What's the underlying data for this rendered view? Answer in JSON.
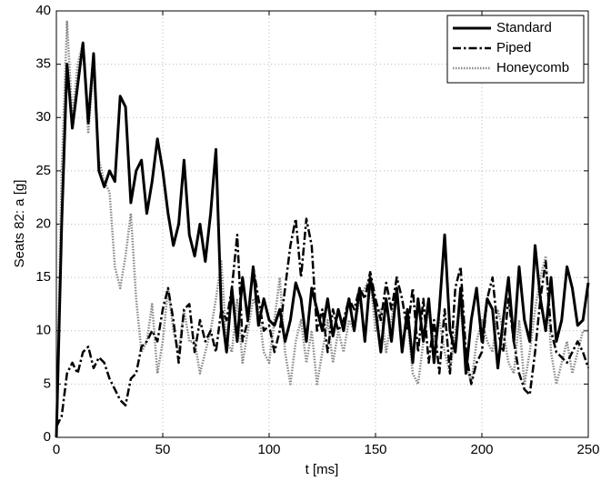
{
  "chart_data": {
    "type": "line",
    "xlabel": "t [ms]",
    "ylabel": "Seats 82: a [g]",
    "x": [
      0,
      2.5,
      5,
      7.5,
      10,
      12.5,
      15,
      17.5,
      20,
      22.5,
      25,
      27.5,
      30,
      32.5,
      35,
      37.5,
      40,
      42.5,
      45,
      47.5,
      50,
      52.5,
      55,
      57.5,
      60,
      62.5,
      65,
      67.5,
      70,
      72.5,
      75,
      77.5,
      80,
      82.5,
      85,
      87.5,
      90,
      92.5,
      95,
      97.5,
      100,
      102.5,
      105,
      107.5,
      110,
      112.5,
      115,
      117.5,
      120,
      122.5,
      125,
      127.5,
      130,
      132.5,
      135,
      137.5,
      140,
      142.5,
      145,
      147.5,
      150,
      152.5,
      155,
      157.5,
      160,
      162.5,
      165,
      167.5,
      170,
      172.5,
      175,
      177.5,
      180,
      182.5,
      185,
      187.5,
      190,
      192.5,
      195,
      197.5,
      200,
      202.5,
      205,
      207.5,
      210,
      212.5,
      215,
      217.5,
      220,
      222.5,
      225,
      227.5,
      230,
      232.5,
      235,
      237.5,
      240,
      242.5,
      245,
      247.5,
      250
    ],
    "series": [
      {
        "name": "Standard",
        "color": "#000000",
        "style": "solid",
        "values": [
          0,
          20,
          35,
          29,
          33,
          37,
          29.5,
          36,
          25,
          23.5,
          25,
          24,
          32,
          31,
          22,
          25,
          26,
          21,
          24,
          28,
          25,
          21,
          18,
          20,
          26,
          19,
          17,
          20,
          16.5,
          21,
          27,
          12,
          8,
          14,
          9,
          15,
          11,
          16,
          10.5,
          13,
          11,
          10.5,
          12,
          9,
          11,
          14.5,
          13,
          9,
          14,
          12,
          10,
          13,
          9.5,
          12,
          10,
          13,
          10,
          14,
          9,
          15,
          12,
          8,
          13,
          9,
          14,
          8,
          12,
          7,
          13,
          9,
          13,
          7,
          12,
          19,
          10,
          8,
          14,
          6,
          11,
          14,
          9,
          13,
          12,
          6.5,
          11,
          15,
          9,
          16,
          11,
          9,
          18,
          13,
          10,
          15,
          9,
          11,
          16,
          14,
          10.5,
          11,
          14.5
        ]
      },
      {
        "name": "Piped",
        "color": "#000000",
        "style": "dashdot",
        "values": [
          1,
          2,
          6,
          7,
          6,
          8,
          8.5,
          6.5,
          7.5,
          7,
          5.5,
          4.5,
          3.5,
          3,
          5.5,
          6,
          8.5,
          9,
          10,
          9,
          12,
          14,
          11,
          7,
          12,
          12.5,
          8,
          11,
          9,
          10,
          8,
          12,
          11,
          14,
          19,
          9,
          11,
          16,
          13,
          10,
          10.5,
          8,
          10,
          14,
          18,
          20.5,
          15,
          20.5,
          18,
          10,
          12,
          8,
          12,
          10,
          11,
          13,
          12,
          14,
          13,
          15.5,
          13,
          11,
          14.5,
          12,
          15,
          13,
          10,
          14,
          8,
          13,
          7,
          11,
          6,
          12,
          6,
          14,
          16,
          8,
          5,
          7,
          8,
          13,
          15,
          10,
          8,
          13,
          9,
          6,
          4.5,
          4,
          8,
          13,
          16.5,
          10,
          8,
          7.5,
          7,
          8,
          9,
          8,
          6.5
        ]
      },
      {
        "name": "Honeycomb",
        "color": "#888888",
        "style": "dotted",
        "values": [
          0,
          25,
          39,
          30,
          35,
          37,
          28.5,
          35,
          26,
          24,
          23,
          16,
          14,
          17,
          21,
          13,
          8,
          9,
          12.5,
          6,
          9,
          14,
          10,
          8,
          12,
          9,
          9,
          6,
          8,
          10,
          13,
          16.5,
          9,
          8,
          13,
          7,
          10,
          13,
          12,
          8,
          7,
          11,
          15,
          8,
          5,
          9,
          11,
          7,
          10,
          5,
          8,
          11,
          7,
          10,
          8,
          11,
          10,
          13,
          14,
          15,
          10,
          12,
          8,
          11,
          14,
          9,
          11,
          6,
          5,
          9,
          12,
          9,
          11,
          8,
          6,
          10,
          12,
          7,
          5,
          9,
          11,
          9,
          8,
          12,
          10,
          7,
          6,
          11,
          5,
          8,
          12,
          15,
          17,
          8,
          5,
          7,
          9,
          6,
          8,
          10,
          10
        ]
      }
    ],
    "xlim": [
      0,
      250
    ],
    "xticks": [
      0,
      50,
      100,
      150,
      200,
      250
    ],
    "ylim": [
      0,
      40
    ],
    "yticks": [
      0,
      5,
      10,
      15,
      20,
      25,
      30,
      35,
      40
    ],
    "grid": true,
    "legend": "upper-right"
  }
}
